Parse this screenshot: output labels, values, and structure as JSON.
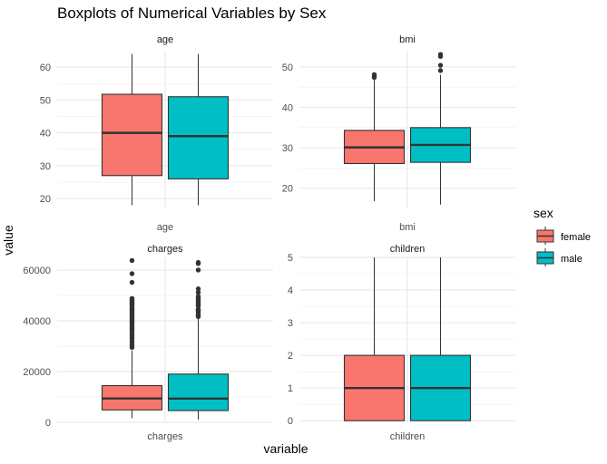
{
  "title": "Boxplots of Numerical Variables by Sex",
  "xlabel": "variable",
  "ylabel": "value",
  "legend": {
    "title": "sex",
    "placement": "right",
    "items": [
      {
        "label": "female",
        "color": "#F8766D"
      },
      {
        "label": "male",
        "color": "#00BFC4"
      }
    ]
  },
  "chart_data": {
    "type": "boxplot",
    "grid": true,
    "facets": [
      {
        "strip": "age",
        "category": "age",
        "ylim": [
          17,
          65
        ],
        "yticks": [
          20,
          30,
          40,
          50,
          60
        ],
        "series": [
          {
            "name": "female",
            "min": 18,
            "q1": 27,
            "median": 40,
            "q3": 51.75,
            "max": 64,
            "outliers": []
          },
          {
            "name": "male",
            "min": 18,
            "q1": 26,
            "median": 39,
            "q3": 51,
            "max": 64,
            "outliers": []
          }
        ]
      },
      {
        "strip": "bmi",
        "category": "bmi",
        "ylim": [
          15,
          54
        ],
        "yticks": [
          20,
          30,
          40,
          50
        ],
        "series": [
          {
            "name": "female",
            "min": 16.8,
            "q1": 26.1,
            "median": 30.1,
            "q3": 34.3,
            "max": 46.8,
            "outliers": [
              47.4,
              47.6,
              48.1
            ]
          },
          {
            "name": "male",
            "min": 15.96,
            "q1": 26.4,
            "median": 30.7,
            "q3": 34.99,
            "max": 48.07,
            "outliers": [
              49.1,
              50.4,
              52.6,
              53.1
            ]
          }
        ]
      },
      {
        "strip": "charges",
        "category": "charges",
        "ylim": [
          0,
          65000
        ],
        "yticks": [
          0,
          20000,
          40000,
          60000
        ],
        "series": [
          {
            "name": "female",
            "min": 1608,
            "q1": 4885,
            "median": 9413,
            "q3": 14454,
            "max": 28287,
            "outliers": [
              29523,
              30567,
              31620,
              32734,
              33471,
              34439,
              35160,
              36149,
              36898,
              37607,
              38245,
              38998,
              39597,
              40182,
              40720,
              41097,
              41919,
              42303,
              42856,
              43254,
              43896,
              44423,
              44641,
              45008,
              45702,
              46200,
              46599,
              47055,
              47269,
              47928,
              48173,
              48824,
              55135,
              58571,
              63770
            ]
          },
          {
            "name": "male",
            "min": 1122,
            "q1": 4619,
            "median": 9370,
            "q3": 19007,
            "max": 40904,
            "outliers": [
              41661,
              42112,
              42760,
              43578,
              43943,
              44202,
              44585,
              45863,
              46130,
              46718,
              47403,
              47896,
              48549,
              48885,
              49577,
              51195,
              52590,
              60021,
              62592,
              63000
            ]
          }
        ]
      },
      {
        "strip": "children",
        "category": "children",
        "ylim": [
          -0.05,
          5
        ],
        "yticks": [
          0,
          1,
          2,
          3,
          4,
          5
        ],
        "series": [
          {
            "name": "female",
            "min": 0,
            "q1": 0,
            "median": 1,
            "q3": 2,
            "max": 5,
            "outliers": []
          },
          {
            "name": "male",
            "min": 0,
            "q1": 0,
            "median": 1,
            "q3": 2,
            "max": 5,
            "outliers": []
          }
        ]
      }
    ]
  }
}
